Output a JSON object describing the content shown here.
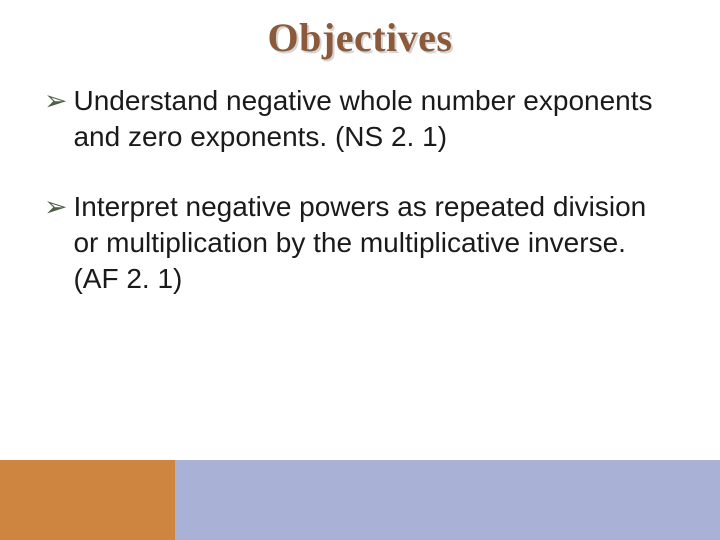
{
  "title": {
    "text": "Objectives",
    "color": "#8a5a3a",
    "shadow_color": "#d5d5d5",
    "font_family": "Georgia, serif",
    "fontsize": 40
  },
  "bullets": [
    {
      "marker": "➢",
      "marker_color": "#4f5f44",
      "text": "Understand negative whole number exponents and zero exponents. (NS 2. 1)"
    },
    {
      "marker": "➢",
      "marker_color": "#4f5f44",
      "text": "Interpret  negative powers as repeated division or multiplication by the multiplicative inverse. (AF 2. 1)"
    }
  ],
  "body": {
    "text_color": "#1a1a1a",
    "fontsize": 28,
    "line_height": 36
  },
  "footer": {
    "left_color": "#cd8540",
    "right_color": "#a9b1d7",
    "left_width": 175,
    "right_width": 545,
    "height": 80
  },
  "background_color": "#ffffff"
}
